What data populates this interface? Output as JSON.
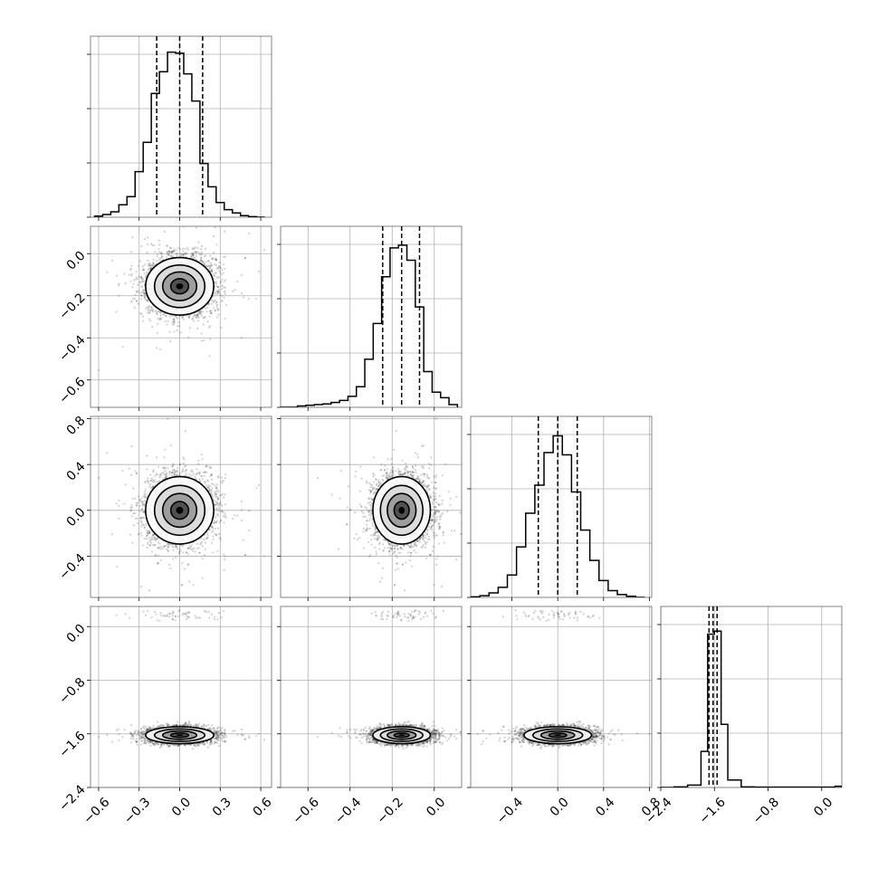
{
  "chart_data": {
    "type": "corner",
    "params": [
      {
        "name": "",
        "range": [
          -0.66,
          0.68
        ],
        "ticks": [
          -0.6,
          -0.3,
          0.0,
          0.3,
          0.6
        ],
        "tick_labels": [
          "−0.6",
          "−0.3",
          "0.0",
          "0.3",
          "0.6"
        ],
        "mean": 0.0,
        "sd": 0.12,
        "quantiles": [
          -0.17,
          0.0,
          0.17
        ]
      },
      {
        "name": "",
        "range": [
          -0.73,
          0.13
        ],
        "ticks": [
          -0.6,
          -0.4,
          -0.2,
          0.0
        ],
        "tick_labels": [
          "−0.6",
          "−0.4",
          "−0.2",
          "0.0"
        ],
        "mean": -0.155,
        "sd": 0.065,
        "quantiles": [
          -0.245,
          -0.155,
          -0.07
        ]
      },
      {
        "name": "",
        "range": [
          -0.76,
          0.82
        ],
        "ticks": [
          -0.4,
          0.0,
          0.4,
          0.8
        ],
        "tick_labels": [
          "−0.4",
          "0.0",
          "0.4",
          "0.8"
        ],
        "mean": 0.0,
        "sd": 0.14,
        "quantiles": [
          -0.17,
          0.0,
          0.17
        ]
      },
      {
        "name": "",
        "range": [
          -2.4,
          0.3
        ],
        "ticks": [
          -2.4,
          -1.6,
          -0.8,
          0.0
        ],
        "tick_labels": [
          "−2.4",
          "−1.6",
          "−0.8",
          "0.0"
        ],
        "mean": -1.62,
        "sd": 0.06,
        "quantiles": [
          -1.68,
          -1.62,
          -1.56
        ]
      }
    ],
    "histograms": [
      {
        "edges": [
          -0.63,
          -0.57,
          -0.51,
          -0.45,
          -0.39,
          -0.33,
          -0.27,
          -0.21,
          -0.15,
          -0.09,
          -0.03,
          0.03,
          0.09,
          0.15,
          0.21,
          0.27,
          0.33,
          0.39,
          0.45,
          0.51,
          0.57,
          0.63
        ],
        "counts": [
          2,
          5,
          10,
          23,
          38,
          84,
          138,
          228,
          268,
          304,
          302,
          264,
          214,
          99,
          56,
          27,
          14,
          8,
          3,
          1,
          0
        ],
        "max": 310
      },
      {
        "edges": [
          -0.73,
          -0.69,
          -0.65,
          -0.61,
          -0.57,
          -0.53,
          -0.49,
          -0.45,
          -0.41,
          -0.37,
          -0.33,
          -0.29,
          -0.25,
          -0.21,
          -0.17,
          -0.13,
          -0.09,
          -0.05,
          -0.01,
          0.03,
          0.07,
          0.11
        ],
        "counts": [
          0,
          0,
          2,
          3,
          4,
          5,
          7,
          10,
          16,
          30,
          70,
          122,
          190,
          232,
          236,
          214,
          146,
          52,
          22,
          14,
          4
        ],
        "max": 245
      },
      {
        "edges": [
          -0.76,
          -0.68,
          -0.6,
          -0.52,
          -0.44,
          -0.36,
          -0.28,
          -0.2,
          -0.12,
          -0.04,
          0.04,
          0.12,
          0.2,
          0.28,
          0.36,
          0.44,
          0.52,
          0.6,
          0.68,
          0.76
        ],
        "counts": [
          1,
          3,
          8,
          18,
          40,
          90,
          150,
          200,
          258,
          288,
          254,
          188,
          120,
          66,
          30,
          12,
          5,
          2,
          0
        ],
        "max": 300
      },
      {
        "edges": [
          -2.4,
          -2.2,
          -2.0,
          -1.8,
          -1.7,
          -1.6,
          -1.5,
          -1.4,
          -1.2,
          -1.0,
          -0.8,
          -0.6,
          -0.4,
          -0.2,
          0.0,
          0.2,
          0.3
        ],
        "counts": [
          0,
          2,
          8,
          120,
          510,
          520,
          210,
          25,
          2,
          1,
          1,
          1,
          1,
          1,
          1,
          4
        ],
        "max": 560
      }
    ],
    "outlier_cluster": {
      "param": 3,
      "value": 0.17
    },
    "grid": true
  }
}
